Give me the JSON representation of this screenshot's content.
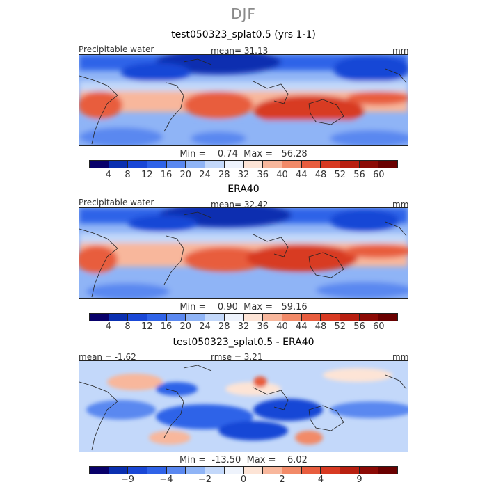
{
  "figure_title": "DJF",
  "panels": [
    {
      "title": "test050323_splat0.5 (yrs 1-1)",
      "left_label": "Precipitable water",
      "center_label": "mean=  31.13",
      "unit": "mm",
      "stats": "Min =    0.74  Max =   56.28",
      "colorbar": {
        "colors": [
          "#08006a",
          "#0a2fb0",
          "#1947d6",
          "#2f63e8",
          "#5a88f0",
          "#8fb4f6",
          "#c3d8fa",
          "#eef3fc",
          "#fde4d6",
          "#f8b79c",
          "#f28a68",
          "#e85d3e",
          "#d83a22",
          "#b81f10",
          "#8c0a05",
          "#6a0000"
        ],
        "tick_labels": [
          "4",
          "8",
          "12",
          "16",
          "20",
          "24",
          "28",
          "32",
          "36",
          "40",
          "44",
          "48",
          "52",
          "56",
          "60"
        ]
      }
    },
    {
      "title": "ERA40",
      "left_label": "Precipitable water",
      "center_label": "mean=  32.42",
      "unit": "mm",
      "stats": "Min =    0.90  Max =   59.16",
      "colorbar": {
        "colors": [
          "#08006a",
          "#0a2fb0",
          "#1947d6",
          "#2f63e8",
          "#5a88f0",
          "#8fb4f6",
          "#c3d8fa",
          "#eef3fc",
          "#fde4d6",
          "#f8b79c",
          "#f28a68",
          "#e85d3e",
          "#d83a22",
          "#b81f10",
          "#8c0a05",
          "#6a0000"
        ],
        "tick_labels": [
          "4",
          "8",
          "12",
          "16",
          "20",
          "24",
          "28",
          "32",
          "36",
          "40",
          "44",
          "48",
          "52",
          "56",
          "60"
        ]
      }
    },
    {
      "title": "test050323_splat0.5 - ERA40",
      "left_label": "mean =   -1.62",
      "center_label": "rmse =    3.21",
      "unit": "mm",
      "stats": "Min =  -13.50  Max =    6.02",
      "colorbar": {
        "colors": [
          "#08006a",
          "#0a2fb0",
          "#1947d6",
          "#2f63e8",
          "#5a88f0",
          "#8fb4f6",
          "#c3d8fa",
          "#eef3fc",
          "#fde4d6",
          "#f8b79c",
          "#f28a68",
          "#e85d3e",
          "#d83a22",
          "#b81f10",
          "#8c0a05",
          "#6a0000"
        ],
        "tick_labels": [
          "−9",
          "−4",
          "−2",
          "0",
          "2",
          "4",
          "9"
        ]
      }
    }
  ]
}
